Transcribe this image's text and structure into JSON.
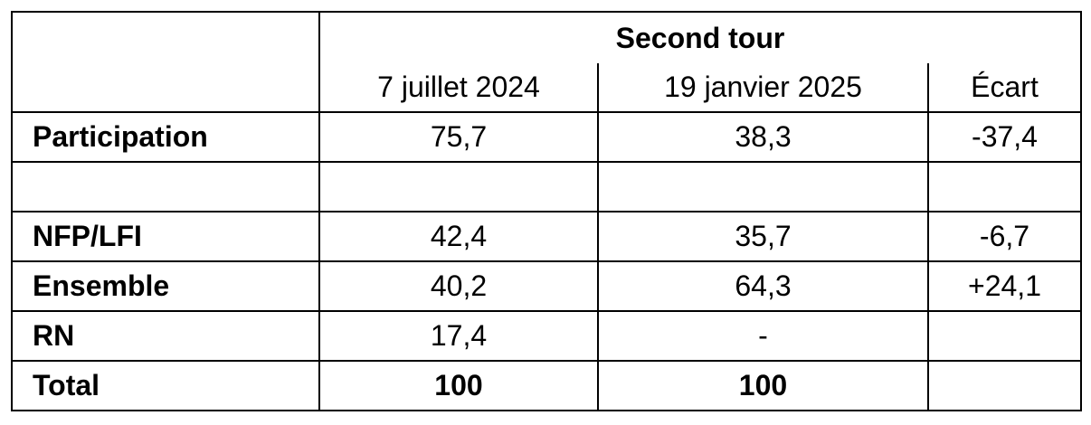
{
  "table": {
    "group_header": "Second tour",
    "columns": [
      "7 juillet 2024",
      "19 janvier 2025",
      "Écart"
    ],
    "rows": [
      {
        "label": "Participation",
        "cells": [
          "75,7",
          "38,3",
          "-37,4"
        ]
      },
      {
        "label": "NFP/LFI",
        "cells": [
          "42,4",
          "35,7",
          "-6,7"
        ]
      },
      {
        "label": "Ensemble",
        "cells": [
          "40,2",
          "64,3",
          "+24,1"
        ]
      },
      {
        "label": "RN",
        "cells": [
          "17,4",
          "-"
        ]
      },
      {
        "label": "Total",
        "cells": [
          "100",
          "100"
        ]
      }
    ]
  }
}
